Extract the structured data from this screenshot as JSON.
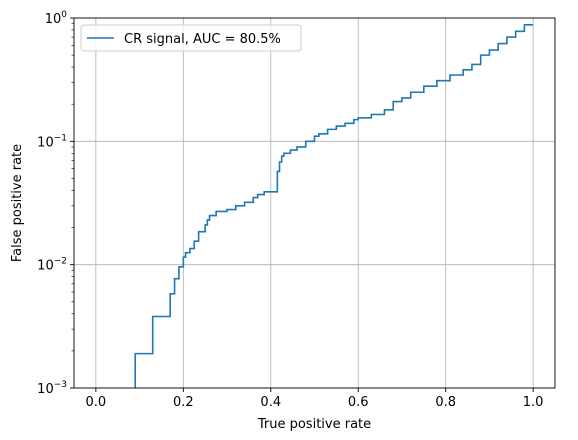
{
  "chart_data": {
    "type": "line",
    "title": "",
    "xlabel": "True positive rate",
    "ylabel": "False positive rate",
    "xlim": [
      -0.05,
      1.05
    ],
    "ylim": [
      0.001,
      1
    ],
    "yscale": "log",
    "grid": true,
    "legend": {
      "placement": "top-left"
    },
    "x_ticks": [
      0.0,
      0.2,
      0.4,
      0.6,
      0.8,
      1.0
    ],
    "x_tick_labels": [
      "0.0",
      "0.2",
      "0.4",
      "0.6",
      "0.8",
      "1.0"
    ],
    "y_ticks": [
      0.001,
      0.01,
      0.1,
      1
    ],
    "y_tick_labels": [
      {
        "base": "10",
        "exp": "−3"
      },
      {
        "base": "10",
        "exp": "−2"
      },
      {
        "base": "10",
        "exp": "−1"
      },
      {
        "base": "10",
        "exp": "0"
      }
    ],
    "series": [
      {
        "name": "CR signal, AUC = 80.5%",
        "color": "#1f77b4",
        "x": [
          0.09,
          0.09,
          0.13,
          0.13,
          0.17,
          0.17,
          0.18,
          0.18,
          0.19,
          0.19,
          0.2,
          0.2,
          0.205,
          0.205,
          0.215,
          0.215,
          0.225,
          0.225,
          0.235,
          0.235,
          0.25,
          0.25,
          0.255,
          0.255,
          0.26,
          0.26,
          0.275,
          0.275,
          0.3,
          0.3,
          0.32,
          0.32,
          0.34,
          0.34,
          0.36,
          0.36,
          0.37,
          0.37,
          0.385,
          0.385,
          0.415,
          0.415,
          0.42,
          0.42,
          0.425,
          0.425,
          0.43,
          0.43,
          0.445,
          0.445,
          0.46,
          0.46,
          0.48,
          0.48,
          0.5,
          0.5,
          0.51,
          0.51,
          0.53,
          0.53,
          0.55,
          0.55,
          0.57,
          0.57,
          0.59,
          0.59,
          0.6,
          0.6,
          0.63,
          0.63,
          0.66,
          0.66,
          0.68,
          0.68,
          0.7,
          0.7,
          0.72,
          0.72,
          0.75,
          0.75,
          0.78,
          0.78,
          0.81,
          0.81,
          0.84,
          0.84,
          0.86,
          0.86,
          0.88,
          0.88,
          0.9,
          0.9,
          0.92,
          0.92,
          0.94,
          0.94,
          0.96,
          0.96,
          0.98,
          0.98,
          1.0
        ],
        "y": [
          0.001,
          0.0019,
          0.0019,
          0.0038,
          0.0038,
          0.0058,
          0.0058,
          0.0077,
          0.0077,
          0.0096,
          0.0096,
          0.0115,
          0.0115,
          0.0125,
          0.0125,
          0.0135,
          0.0135,
          0.0155,
          0.0155,
          0.0185,
          0.0185,
          0.021,
          0.021,
          0.023,
          0.023,
          0.025,
          0.025,
          0.027,
          0.027,
          0.028,
          0.028,
          0.03,
          0.03,
          0.032,
          0.032,
          0.035,
          0.035,
          0.037,
          0.037,
          0.039,
          0.039,
          0.057,
          0.057,
          0.068,
          0.068,
          0.076,
          0.076,
          0.08,
          0.08,
          0.085,
          0.085,
          0.09,
          0.09,
          0.1,
          0.1,
          0.11,
          0.11,
          0.115,
          0.115,
          0.125,
          0.125,
          0.133,
          0.133,
          0.14,
          0.14,
          0.15,
          0.15,
          0.155,
          0.155,
          0.165,
          0.165,
          0.18,
          0.18,
          0.21,
          0.21,
          0.225,
          0.225,
          0.25,
          0.25,
          0.28,
          0.28,
          0.31,
          0.31,
          0.345,
          0.345,
          0.38,
          0.38,
          0.42,
          0.42,
          0.5,
          0.5,
          0.55,
          0.55,
          0.62,
          0.62,
          0.7,
          0.7,
          0.78,
          0.78,
          0.88,
          0.88
        ]
      }
    ]
  }
}
